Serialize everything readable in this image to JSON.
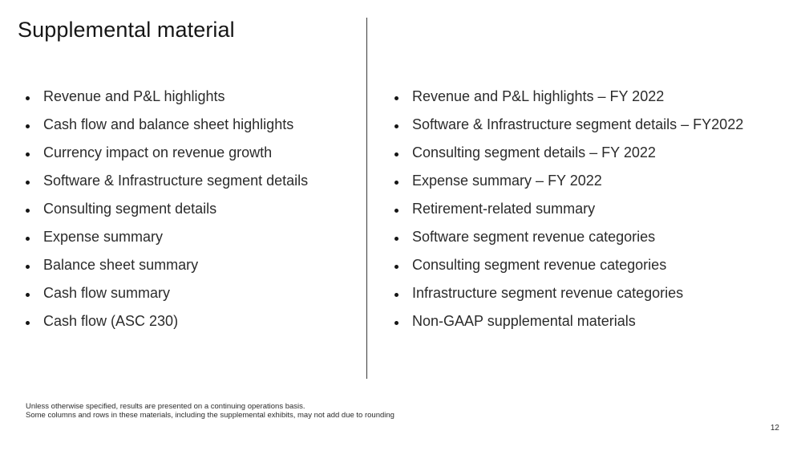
{
  "title": "Supplemental material",
  "left_items": [
    "Revenue and P&L highlights",
    "Cash flow and balance sheet highlights",
    "Currency impact on revenue growth",
    "Software & Infrastructure segment details",
    "Consulting segment details",
    "Expense summary",
    "Balance sheet summary",
    "Cash flow summary",
    "Cash flow (ASC 230)"
  ],
  "right_items": [
    "Revenue and P&L highlights – FY 2022",
    "Software & Infrastructure segment details – FY2022",
    "Consulting segment details – FY 2022",
    "Expense summary – FY 2022",
    "Retirement-related summary",
    "Software segment revenue categories",
    "Consulting segment revenue categories",
    "Infrastructure segment revenue categories",
    "Non-GAAP supplemental materials"
  ],
  "footnotes": [
    "Unless otherwise specified, results are presented on a continuing operations basis.",
    "Some columns and rows in these materials, including the supplemental exhibits, may not add due to rounding"
  ],
  "page_number": "12"
}
